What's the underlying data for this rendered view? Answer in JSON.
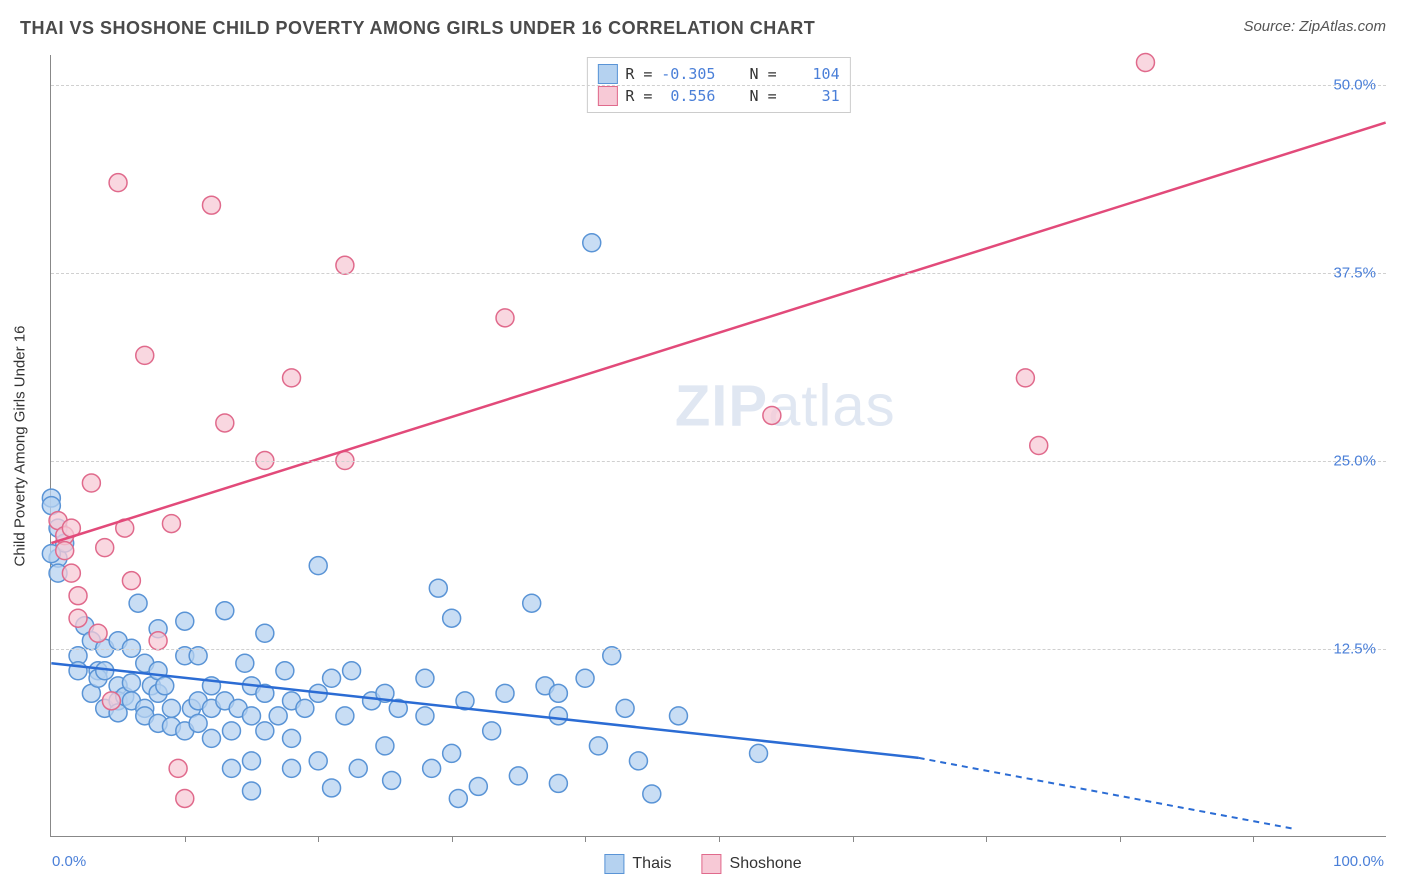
{
  "title": "THAI VS SHOSHONE CHILD POVERTY AMONG GIRLS UNDER 16 CORRELATION CHART",
  "source": "Source: ZipAtlas.com",
  "ylabel": "Child Poverty Among Girls Under 16",
  "watermark": {
    "bold": "ZIP",
    "light": "atlas"
  },
  "chart": {
    "type": "scatter",
    "xlim": [
      0,
      100
    ],
    "ylim": [
      0,
      52
    ],
    "xtick_label_left": "0.0%",
    "xtick_label_right": "100.0%",
    "xtick_positions_pct": [
      10,
      20,
      30,
      40,
      50,
      60,
      70,
      80,
      90
    ],
    "yticks": [
      {
        "value": 12.5,
        "label": "12.5%"
      },
      {
        "value": 25.0,
        "label": "25.0%"
      },
      {
        "value": 37.5,
        "label": "37.5%"
      },
      {
        "value": 50.0,
        "label": "50.0%"
      }
    ],
    "grid_color": "#d0d0d0",
    "background_color": "#ffffff",
    "series": [
      {
        "name": "Thais",
        "fill": "#b5d2f0",
        "stroke": "#5a94d6",
        "marker_radius": 9,
        "marker_opacity": 0.75,
        "R": "-0.305",
        "N": "104",
        "trend": {
          "x1": 0,
          "y1": 11.5,
          "x2_solid": 65,
          "y2_solid": 5.2,
          "x2_dash": 93,
          "y2_dash": 0.5,
          "stroke": "#2b6cd4",
          "width": 2.5
        },
        "points": [
          [
            0,
            22.5
          ],
          [
            0.5,
            20.5
          ],
          [
            0.5,
            18.5
          ],
          [
            0.5,
            17.5
          ],
          [
            1,
            19.5
          ],
          [
            0,
            22
          ],
          [
            0,
            18.8
          ],
          [
            2,
            12
          ],
          [
            2,
            11
          ],
          [
            2.5,
            14
          ],
          [
            3,
            13
          ],
          [
            3,
            9.5
          ],
          [
            3.5,
            11
          ],
          [
            3.5,
            10.5
          ],
          [
            4,
            12.5
          ],
          [
            4,
            8.5
          ],
          [
            4,
            11
          ],
          [
            5,
            13
          ],
          [
            5,
            10
          ],
          [
            5,
            9
          ],
          [
            5,
            8.2
          ],
          [
            5.5,
            9.3
          ],
          [
            6,
            12.5
          ],
          [
            6,
            10.2
          ],
          [
            6,
            9
          ],
          [
            6.5,
            15.5
          ],
          [
            7,
            11.5
          ],
          [
            7,
            8.5
          ],
          [
            7,
            8
          ],
          [
            7.5,
            10
          ],
          [
            8,
            13.8
          ],
          [
            8,
            11
          ],
          [
            8,
            9.5
          ],
          [
            8,
            7.5
          ],
          [
            8.5,
            10
          ],
          [
            9,
            8.5
          ],
          [
            9,
            7.3
          ],
          [
            10,
            14.3
          ],
          [
            10,
            12
          ],
          [
            10,
            7
          ],
          [
            10.5,
            8.5
          ],
          [
            11,
            12
          ],
          [
            11,
            9
          ],
          [
            11,
            7.5
          ],
          [
            12,
            10
          ],
          [
            12,
            8.5
          ],
          [
            12,
            6.5
          ],
          [
            13,
            15
          ],
          [
            13,
            9
          ],
          [
            13.5,
            7
          ],
          [
            13.5,
            4.5
          ],
          [
            14,
            8.5
          ],
          [
            14.5,
            11.5
          ],
          [
            15,
            10
          ],
          [
            15,
            8
          ],
          [
            15,
            5
          ],
          [
            15,
            3
          ],
          [
            16,
            13.5
          ],
          [
            16,
            9.5
          ],
          [
            16,
            7
          ],
          [
            17,
            8
          ],
          [
            17.5,
            11
          ],
          [
            18,
            9
          ],
          [
            18,
            6.5
          ],
          [
            18,
            4.5
          ],
          [
            19,
            8.5
          ],
          [
            20,
            18
          ],
          [
            20,
            9.5
          ],
          [
            20,
            5
          ],
          [
            21,
            3.2
          ],
          [
            21,
            10.5
          ],
          [
            22,
            8
          ],
          [
            22.5,
            11
          ],
          [
            23,
            4.5
          ],
          [
            24,
            9
          ],
          [
            25,
            6
          ],
          [
            25,
            9.5
          ],
          [
            25.5,
            3.7
          ],
          [
            26,
            8.5
          ],
          [
            28,
            10.5
          ],
          [
            28,
            8
          ],
          [
            28.5,
            4.5
          ],
          [
            29,
            16.5
          ],
          [
            30,
            14.5
          ],
          [
            30,
            5.5
          ],
          [
            30.5,
            2.5
          ],
          [
            31,
            9
          ],
          [
            32,
            3.3
          ],
          [
            33,
            7
          ],
          [
            34,
            9.5
          ],
          [
            35,
            4
          ],
          [
            36,
            15.5
          ],
          [
            37,
            10
          ],
          [
            38,
            9.5
          ],
          [
            38,
            8
          ],
          [
            38,
            3.5
          ],
          [
            40,
            10.5
          ],
          [
            41,
            6
          ],
          [
            42,
            12
          ],
          [
            43,
            8.5
          ],
          [
            44,
            5
          ],
          [
            45,
            2.8
          ],
          [
            47,
            8
          ],
          [
            53,
            5.5
          ],
          [
            40.5,
            39.5
          ]
        ]
      },
      {
        "name": "Shoshone",
        "fill": "#f7c9d6",
        "stroke": "#e06a8c",
        "marker_radius": 9,
        "marker_opacity": 0.75,
        "R": "0.556",
        "N": "31",
        "trend": {
          "x1": 0,
          "y1": 19.5,
          "x2_solid": 100,
          "y2_solid": 47.5,
          "stroke": "#e24a7a",
          "width": 2.5
        },
        "points": [
          [
            0.5,
            21
          ],
          [
            1,
            20
          ],
          [
            1,
            19
          ],
          [
            1.5,
            20.5
          ],
          [
            1.5,
            17.5
          ],
          [
            2,
            16
          ],
          [
            2,
            14.5
          ],
          [
            3,
            23.5
          ],
          [
            3.5,
            13.5
          ],
          [
            4,
            19.2
          ],
          [
            4.5,
            9
          ],
          [
            5,
            43.5
          ],
          [
            5.5,
            20.5
          ],
          [
            6,
            17
          ],
          [
            7,
            32
          ],
          [
            8,
            13
          ],
          [
            9,
            20.8
          ],
          [
            9.5,
            4.5
          ],
          [
            10,
            2.5
          ],
          [
            12,
            42
          ],
          [
            13,
            27.5
          ],
          [
            16,
            25
          ],
          [
            18,
            30.5
          ],
          [
            22,
            38
          ],
          [
            22,
            25
          ],
          [
            34,
            34.5
          ],
          [
            54,
            28
          ],
          [
            73,
            30.5
          ],
          [
            74,
            26
          ],
          [
            82,
            51.5
          ]
        ]
      }
    ],
    "stats_box": {
      "rows": [
        {
          "swatch_fill": "#b5d2f0",
          "swatch_stroke": "#5a94d6",
          "R_label": "R =",
          "R_value": "-0.305",
          "N_label": "N =",
          "N_value": "104"
        },
        {
          "swatch_fill": "#f7c9d6",
          "swatch_stroke": "#e06a8c",
          "R_label": "R =",
          "R_value": "0.556",
          "N_label": "N =",
          "N_value": "31"
        }
      ]
    },
    "bottom_legend": [
      {
        "swatch_fill": "#b5d2f0",
        "swatch_stroke": "#5a94d6",
        "label": "Thais"
      },
      {
        "swatch_fill": "#f7c9d6",
        "swatch_stroke": "#e06a8c",
        "label": "Shoshone"
      }
    ]
  }
}
